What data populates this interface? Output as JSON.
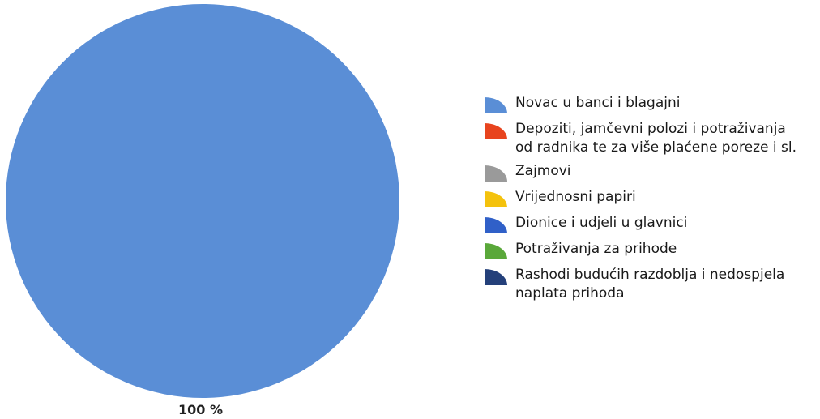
{
  "chart_data": {
    "type": "pie",
    "slices": [
      {
        "label": "Novac u banci i blagajni",
        "value": 100,
        "color": "#5a8ed6"
      },
      {
        "label": "Depoziti, jamčevni polozi i potraživanja\nod radnika te za više plaćene poreze i sl.",
        "value": 0,
        "color": "#e8441e"
      },
      {
        "label": "Zajmovi",
        "value": 0,
        "color": "#9a9a9a"
      },
      {
        "label": "Vrijednosni papiri",
        "value": 0,
        "color": "#f4c20d"
      },
      {
        "label": "Dionice i udjeli u glavnici",
        "value": 0,
        "color": "#3060c8"
      },
      {
        "label": "Potraživanja za prihode",
        "value": 0,
        "color": "#5aa83a"
      },
      {
        "label": "Rashodi budućih razdoblja i nedospjela\nnaplata prihoda",
        "value": 0,
        "color": "#24407a"
      }
    ],
    "data_labels": [
      "100 %"
    ],
    "legend_position": "right"
  }
}
